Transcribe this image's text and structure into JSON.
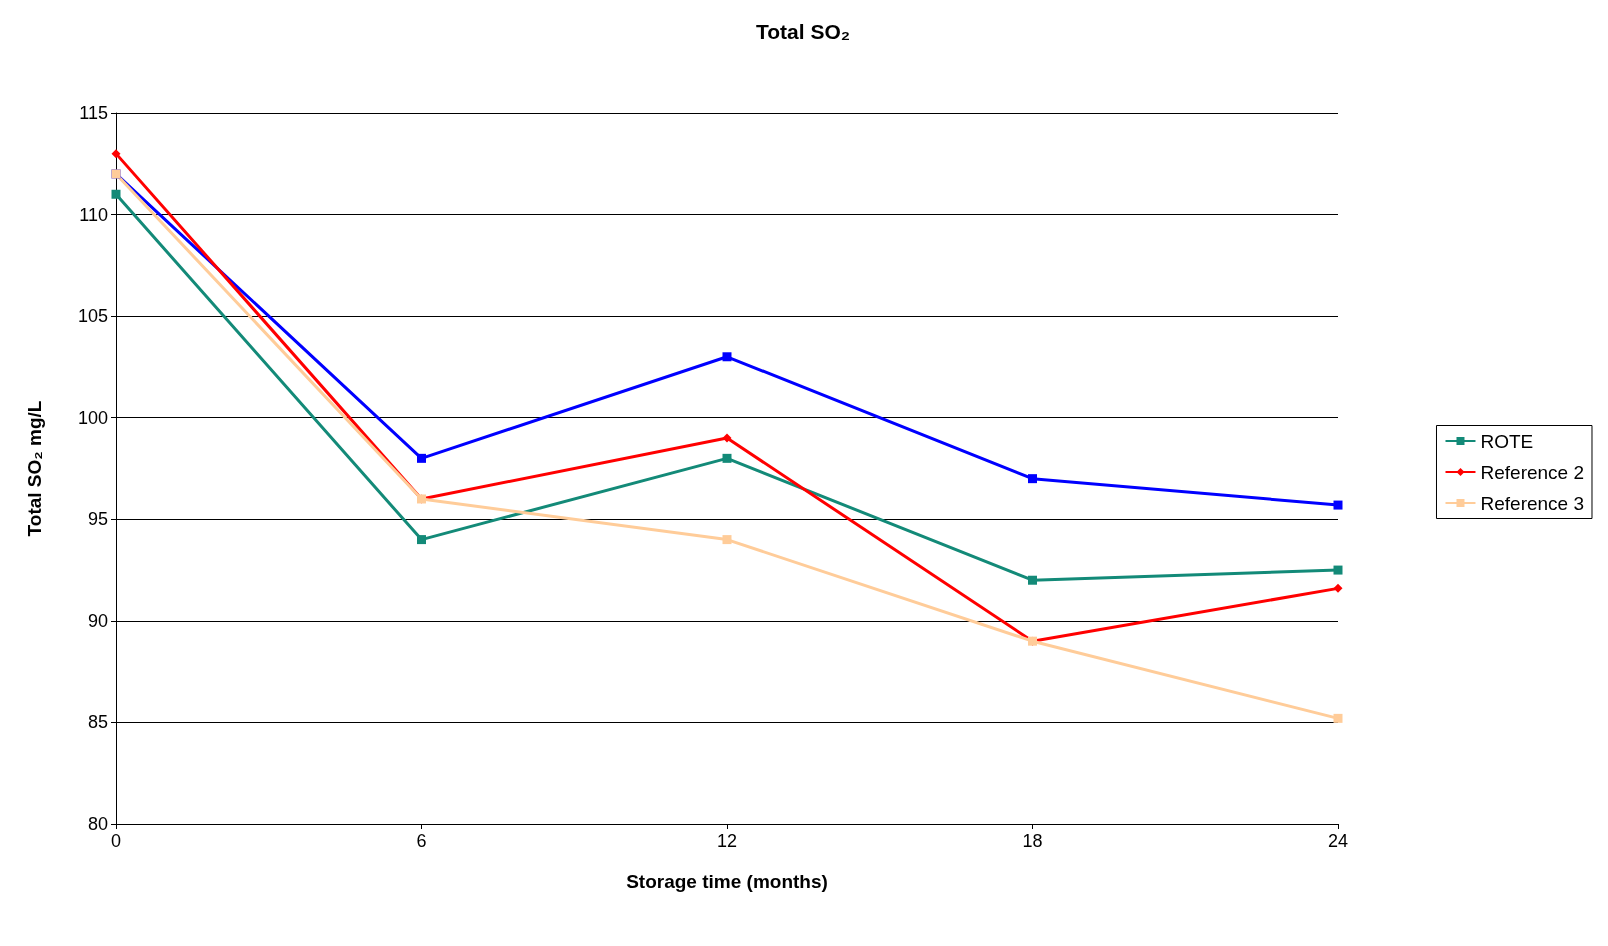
{
  "chart_data": {
    "type": "line",
    "title": "Total SO₂",
    "xlabel": "Storage time (months)",
    "ylabel": "Total SO₂ mg/L",
    "x": [
      0,
      6,
      12,
      18,
      24
    ],
    "xlim": [
      0,
      24
    ],
    "xticks": [
      0,
      6,
      12,
      18,
      24
    ],
    "ylim": [
      80,
      115
    ],
    "yticks": [
      80,
      85,
      90,
      95,
      100,
      105,
      110,
      115
    ],
    "grid": "y",
    "legend": "right",
    "series": [
      {
        "name": "ROTE",
        "color": "#138a78",
        "marker": "square",
        "values": [
          111,
          94,
          98,
          92,
          92.5
        ]
      },
      {
        "color": "#0000ff",
        "marker": "square",
        "values": [
          112,
          98,
          103,
          97,
          95.7
        ]
      },
      {
        "name": "Reference 2",
        "color": "#ff0000",
        "marker": "diamond",
        "values": [
          113,
          96,
          99,
          89,
          91.6
        ]
      },
      {
        "name": "Reference 3",
        "color": "#ffcc99",
        "marker": "square",
        "values": [
          112,
          96,
          94,
          89,
          85.2
        ]
      }
    ]
  }
}
